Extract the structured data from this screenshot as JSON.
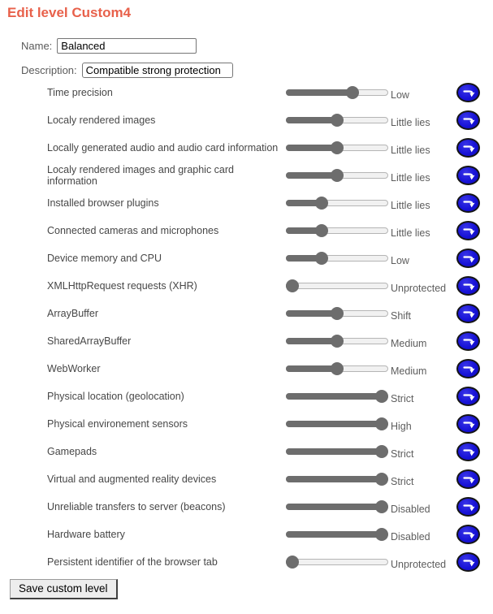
{
  "title": "Edit level Custom4",
  "accent_color": "#e8614b",
  "form": {
    "name_label": "Name:",
    "name_value": "Balanced",
    "description_label": "Description:",
    "description_value": "Compatible strong protection"
  },
  "rows": [
    {
      "label": "Time precision",
      "value": "Low",
      "percent": 67
    },
    {
      "label": "Localy rendered images",
      "value": "Little lies",
      "percent": 50
    },
    {
      "label": "Locally generated audio and audio card information",
      "value": "Little lies",
      "percent": 50
    },
    {
      "label": "Localy rendered images and graphic card information",
      "value": "Little lies",
      "percent": 50
    },
    {
      "label": "Installed browser plugins",
      "value": "Little lies",
      "percent": 33
    },
    {
      "label": "Connected cameras and microphones",
      "value": "Little lies",
      "percent": 33
    },
    {
      "label": "Device memory and CPU",
      "value": "Low",
      "percent": 33
    },
    {
      "label": "XMLHttpRequest requests (XHR)",
      "value": "Unprotected",
      "percent": 0
    },
    {
      "label": "ArrayBuffer",
      "value": "Shift",
      "percent": 50
    },
    {
      "label": "SharedArrayBuffer",
      "value": "Medium",
      "percent": 50
    },
    {
      "label": "WebWorker",
      "value": "Medium",
      "percent": 50
    },
    {
      "label": "Physical location (geolocation)",
      "value": "Strict",
      "percent": 100
    },
    {
      "label": "Physical environement sensors",
      "value": "High",
      "percent": 100
    },
    {
      "label": "Gamepads",
      "value": "Strict",
      "percent": 100
    },
    {
      "label": "Virtual and augmented reality devices",
      "value": "Strict",
      "percent": 100
    },
    {
      "label": "Unreliable transfers to server (beacons)",
      "value": "Disabled",
      "percent": 100
    },
    {
      "label": "Hardware battery",
      "value": "Disabled",
      "percent": 100
    },
    {
      "label": "Persistent identifier of the browser tab",
      "value": "Unprotected",
      "percent": 0
    }
  ],
  "row_button": {
    "icon": "redo-arrow-icon",
    "color": "#1712d6"
  },
  "slider_colors": {
    "fill": "#6d6d6d",
    "track": "#f1f1f1",
    "track_border": "#b5b5b5"
  },
  "save_button_label": "Save custom level"
}
